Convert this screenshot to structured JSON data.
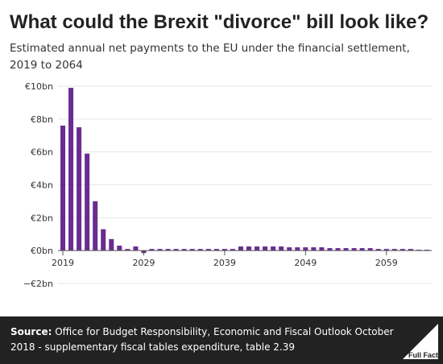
{
  "title": "What could the Brexit \"divorce\" bill look like?",
  "subtitle": "Estimated annual net payments to the EU under the financial settlement, 2019 to 2064",
  "source": {
    "label": "Source:",
    "text": "Office for Budget Responsibility, Economic and Fiscal Outlook October 2018 - supplementary fiscal tables expenditure, table 2.39"
  },
  "logo": {
    "icon": "full-fact-logo-icon",
    "text": "Full Fact"
  },
  "colors": {
    "bar": "#6a2c91",
    "footer": "#222222",
    "grid": "#e6e6e6"
  },
  "chart_data": {
    "type": "bar",
    "ylim": [
      -2,
      10
    ],
    "yticks": [
      -2,
      0,
      2,
      4,
      6,
      8,
      10
    ],
    "ytick_labels": [
      "−€2bn",
      "€0bn",
      "€2bn",
      "€4bn",
      "€6bn",
      "€8bn",
      "€10bn"
    ],
    "xtick_labels": [
      "2019",
      "2029",
      "2039",
      "2049",
      "2059"
    ],
    "grid": true,
    "categories": [
      2019,
      2020,
      2021,
      2022,
      2023,
      2024,
      2025,
      2026,
      2027,
      2028,
      2029,
      2030,
      2031,
      2032,
      2033,
      2034,
      2035,
      2036,
      2037,
      2038,
      2039,
      2040,
      2041,
      2042,
      2043,
      2044,
      2045,
      2046,
      2047,
      2048,
      2049,
      2050,
      2051,
      2052,
      2053,
      2054,
      2055,
      2056,
      2057,
      2058,
      2059,
      2060,
      2061,
      2062,
      2063,
      2064
    ],
    "values": [
      7.6,
      9.9,
      7.5,
      5.9,
      3.0,
      1.3,
      0.7,
      0.3,
      0.1,
      0.25,
      -0.15,
      0.1,
      0.1,
      0.1,
      0.1,
      0.1,
      0.1,
      0.1,
      0.1,
      0.1,
      0.1,
      0.1,
      0.25,
      0.25,
      0.25,
      0.25,
      0.25,
      0.25,
      0.2,
      0.2,
      0.2,
      0.2,
      0.2,
      0.15,
      0.15,
      0.15,
      0.15,
      0.15,
      0.15,
      0.1,
      0.1,
      0.1,
      0.1,
      0.1,
      0.05,
      0.05
    ]
  }
}
